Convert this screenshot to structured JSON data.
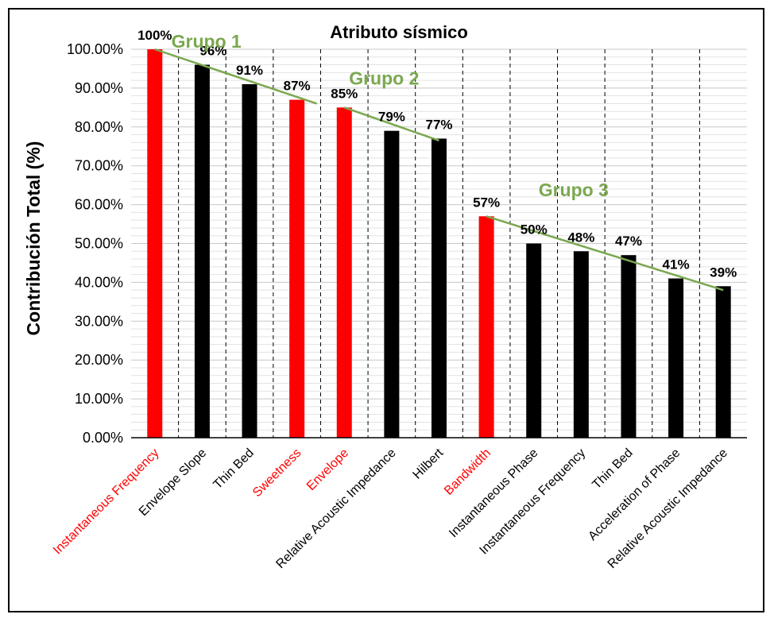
{
  "chart_data": {
    "type": "bar",
    "title": "Atributo sísmico",
    "ylabel": "Contribución Total (%)",
    "xlabel": "",
    "ylim": [
      0,
      100
    ],
    "yticks": [
      0,
      10,
      20,
      30,
      40,
      50,
      60,
      70,
      80,
      90,
      100
    ],
    "ytick_labels": [
      "0.00%",
      "10.00%",
      "20.00%",
      "30.00%",
      "40.00%",
      "50.00%",
      "60.00%",
      "70.00%",
      "80.00%",
      "90.00%",
      "100.00%"
    ],
    "grid": true,
    "categories": [
      "Instantaneous Frequency",
      "Envelope Slope",
      "Thin Bed",
      "Sweetness",
      "Envelope",
      "Relative Acoustic Impedance",
      "Hilbert",
      "Bandwidth",
      "Instantaneous Phase",
      "Instantaneous Frequency",
      "Thin Bed",
      "Acceleration of Phase",
      "Relative Acoustic Impedance"
    ],
    "values": [
      100,
      96,
      91,
      87,
      85,
      79,
      77,
      57,
      50,
      48,
      47,
      41,
      39
    ],
    "data_labels": [
      "100%",
      "96%",
      "91%",
      "87%",
      "85%",
      "79%",
      "77%",
      "57%",
      "50%",
      "48%",
      "47%",
      "41%",
      "39%"
    ],
    "bar_colors": [
      "#ff0000",
      "#000000",
      "#000000",
      "#ff0000",
      "#ff0000",
      "#000000",
      "#000000",
      "#ff0000",
      "#000000",
      "#000000",
      "#000000",
      "#000000",
      "#000000"
    ],
    "groups": [
      {
        "label": "Grupo 1",
        "line": [
          [
            0,
            100
          ],
          [
            3,
            86
          ]
        ]
      },
      {
        "label": "Grupo 2",
        "line": [
          [
            4,
            85
          ],
          [
            6,
            76.5
          ]
        ]
      },
      {
        "label": "Grupo 3",
        "line": [
          [
            7,
            57
          ],
          [
            12,
            38
          ]
        ]
      }
    ],
    "group_color": "#7aa84f",
    "highlight_color": "#ff0000"
  }
}
